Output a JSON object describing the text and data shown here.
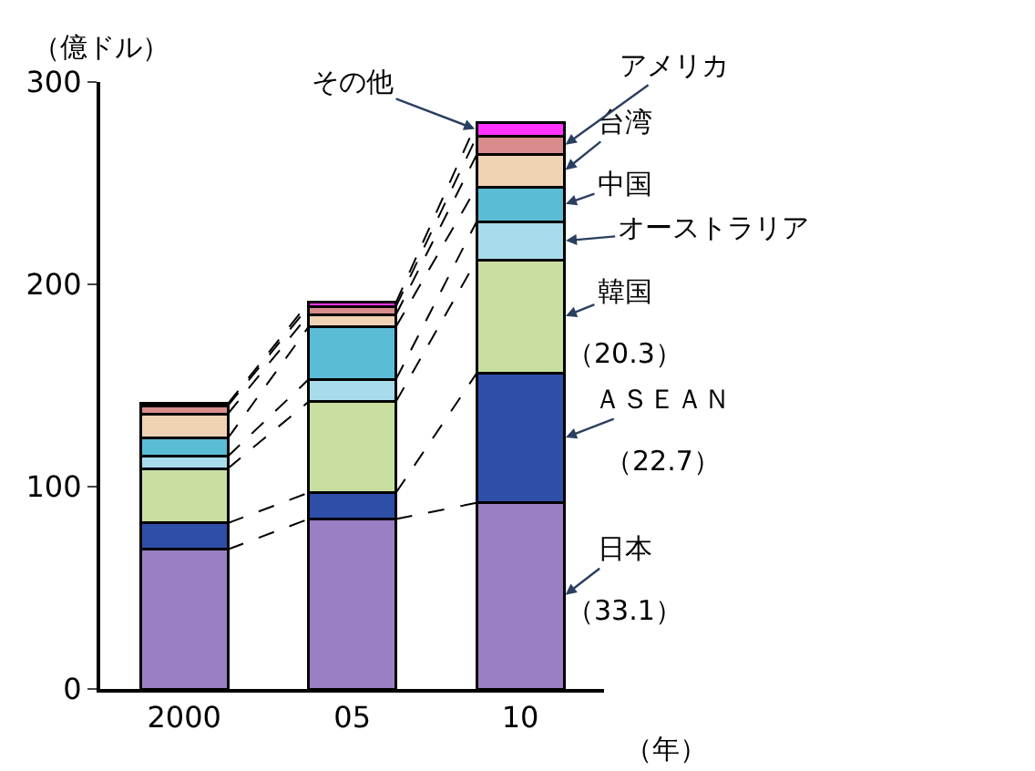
{
  "chart_data": {
    "type": "bar",
    "stacked": true,
    "ylabel": "（億ドル）",
    "xlabel": "（年）",
    "categories": [
      "2000",
      "05",
      "10"
    ],
    "series": [
      {
        "name": "日本",
        "color": "#9b7fc4",
        "values": [
          69,
          84,
          92
        ]
      },
      {
        "name": "ＡＳＥＡＮ",
        "color": "#2e4fa8",
        "values": [
          13,
          13,
          64
        ]
      },
      {
        "name": "韓国",
        "color": "#c9dfa0",
        "values": [
          27,
          45,
          56
        ]
      },
      {
        "name": "オーストラリア",
        "color": "#a8dcea",
        "values": [
          6,
          11,
          19
        ]
      },
      {
        "name": "中国",
        "color": "#5bbcd6",
        "values": [
          9,
          26,
          17
        ]
      },
      {
        "name": "台湾",
        "color": "#f0d2b4",
        "values": [
          12,
          6,
          16
        ]
      },
      {
        "name": "アメリカ",
        "color": "#d98c8c",
        "values": [
          4,
          4,
          9
        ]
      },
      {
        "name": "その他",
        "color": "#ff33ff",
        "values": [
          1,
          2,
          7
        ]
      }
    ],
    "annotations": [
      "（33.1）",
      "（22.7）",
      "（20.3）"
    ],
    "ylim": [
      0,
      300
    ],
    "yticks": [
      0,
      100,
      200,
      300
    ],
    "legend": false
  }
}
